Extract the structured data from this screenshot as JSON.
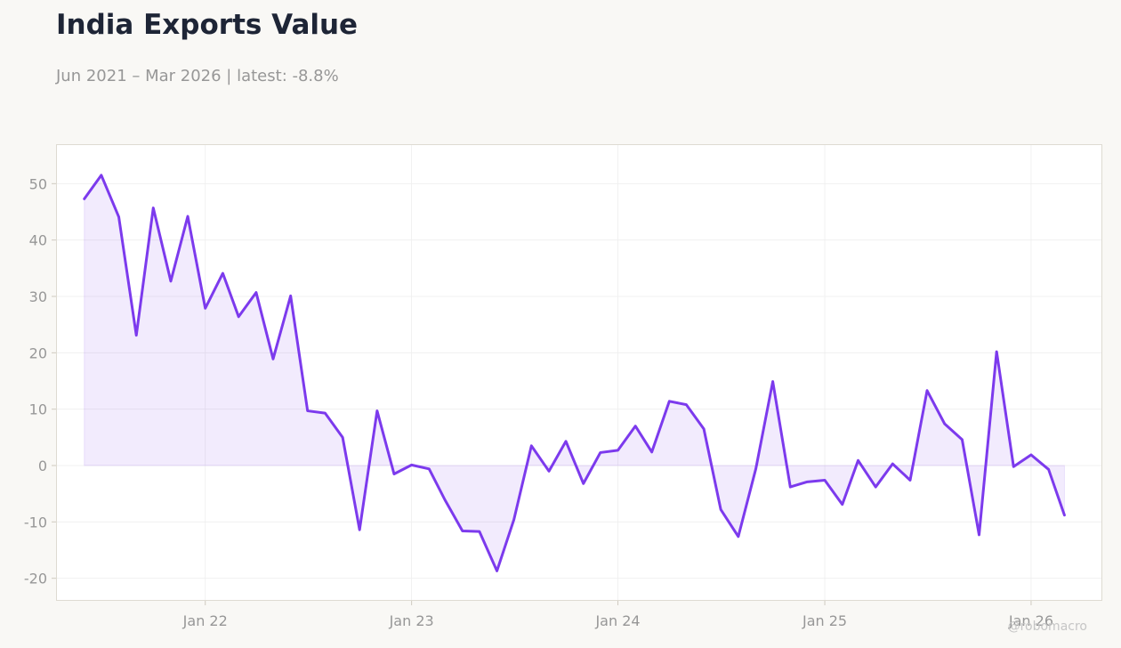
{
  "header": {
    "title": "India Exports Value",
    "subtitle": "Jun 2021 – Mar 2026 | latest: -8.8%"
  },
  "watermark": "@robomacro",
  "colors": {
    "line": "#7c3aed",
    "fill": "#7c3aed",
    "grid": "#eeeeee",
    "axis_text": "#979797",
    "background": "#f9f8f5",
    "plot_background": "#ffffff"
  },
  "chart_data": {
    "type": "area",
    "title": "India Exports Value",
    "subtitle": "Jun 2021 – Mar 2026 | latest: -8.8%",
    "xlabel": "",
    "ylabel": "",
    "ylim": [
      -24,
      57
    ],
    "yticks": [
      -20,
      -10,
      0,
      10,
      20,
      30,
      40,
      50
    ],
    "ytick_labels": [
      "-20",
      "-10",
      "0",
      "10",
      "20",
      "30",
      "40",
      "50"
    ],
    "xlim": [
      "2021-04-12",
      "2026-05-07"
    ],
    "xticks": [
      "2022-01-01",
      "2023-01-01",
      "2024-01-01",
      "2025-01-01",
      "2026-01-01"
    ],
    "xtick_labels": [
      "Jan 22",
      "Jan 23",
      "Jan 24",
      "Jan 25",
      "Jan 26"
    ],
    "grid": true,
    "series": [
      {
        "x": [
          "2021-06-01",
          "2021-07-01",
          "2021-08-01",
          "2021-09-01",
          "2021-10-01",
          "2021-11-01",
          "2021-12-01",
          "2022-01-01",
          "2022-02-01",
          "2022-03-01",
          "2022-04-01",
          "2022-05-01",
          "2022-06-01",
          "2022-07-01",
          "2022-08-01",
          "2022-09-01",
          "2022-10-01",
          "2022-11-01",
          "2022-12-01",
          "2023-01-01",
          "2023-02-01",
          "2023-03-01",
          "2023-04-01",
          "2023-05-01",
          "2023-06-01",
          "2023-07-01",
          "2023-08-01",
          "2023-09-01",
          "2023-10-01",
          "2023-11-01",
          "2023-12-01",
          "2024-01-01",
          "2024-02-01",
          "2024-03-01",
          "2024-04-01",
          "2024-05-01",
          "2024-06-01",
          "2024-07-01",
          "2024-08-01",
          "2024-09-01",
          "2024-10-01",
          "2024-11-01",
          "2024-12-01",
          "2025-01-01",
          "2025-02-01",
          "2025-03-01",
          "2025-04-01",
          "2025-05-01",
          "2025-06-01",
          "2025-07-01",
          "2025-08-01",
          "2025-09-01",
          "2025-10-01",
          "2025-11-01",
          "2025-12-01",
          "2026-01-01",
          "2026-02-01",
          "2026-03-01"
        ],
        "values": [
          47.3,
          51.5,
          44.1,
          23.1,
          45.7,
          32.7,
          44.2,
          27.9,
          34.1,
          26.4,
          30.7,
          18.9,
          30.1,
          9.7,
          9.3,
          5.0,
          -11.4,
          9.7,
          -1.5,
          0.1,
          -0.6,
          -6.1,
          -11.6,
          -11.7,
          -18.7,
          -9.6,
          3.5,
          -1.0,
          4.3,
          -3.2,
          2.3,
          2.7,
          7.0,
          2.4,
          11.4,
          10.8,
          6.5,
          -7.8,
          -12.6,
          -0.6,
          14.9,
          -3.8,
          -2.9,
          -2.6,
          -6.9,
          0.9,
          -3.8,
          0.3,
          -2.6,
          13.3,
          7.4,
          4.6,
          -12.3,
          20.2,
          -0.2,
          1.9,
          -0.7,
          -8.8
        ]
      }
    ]
  }
}
